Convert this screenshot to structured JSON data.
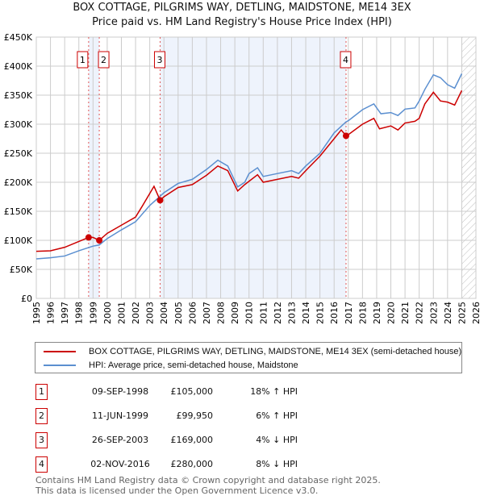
{
  "chart_data": {
    "type": "line",
    "title": "BOX COTTAGE, PILGRIMS WAY, DETLING, MAIDSTONE, ME14 3EX",
    "subtitle": "Price paid vs. HM Land Registry's House Price Index (HPI)",
    "xlim": [
      1995,
      2026
    ],
    "ylim": [
      0,
      450000
    ],
    "x_ticks": [
      "1995",
      "1996",
      "1997",
      "1998",
      "1999",
      "2000",
      "2001",
      "2002",
      "2003",
      "2004",
      "2005",
      "2006",
      "2007",
      "2008",
      "2009",
      "2010",
      "2011",
      "2012",
      "2013",
      "2014",
      "2015",
      "2016",
      "2017",
      "2018",
      "2019",
      "2020",
      "2021",
      "2022",
      "2023",
      "2024",
      "2025",
      "2026"
    ],
    "y_ticks": [
      {
        "v": 0,
        "label": "£0"
      },
      {
        "v": 50000,
        "label": "£50K"
      },
      {
        "v": 100000,
        "label": "£100K"
      },
      {
        "v": 150000,
        "label": "£150K"
      },
      {
        "v": 200000,
        "label": "£200K"
      },
      {
        "v": 250000,
        "label": "£250K"
      },
      {
        "v": 300000,
        "label": "£300K"
      },
      {
        "v": 350000,
        "label": "£350K"
      },
      {
        "v": 400000,
        "label": "£400K"
      },
      {
        "v": 450000,
        "label": "£450K"
      }
    ],
    "grid": true,
    "shaded_ranges": [
      [
        1998.69,
        1999.44
      ],
      [
        2003.73,
        2016.84
      ]
    ],
    "forecast_hatch_from": 2025.0,
    "series": [
      {
        "name": "BOX COTTAGE, PILGRIMS WAY, DETLING, MAIDSTONE, ME14 3EX (semi-detached house)",
        "color": "#cc0000",
        "x": [
          1995,
          1996,
          1997,
          1998,
          1998.69,
          1999,
          1999.44,
          2000,
          2001,
          2002,
          2002.5,
          2003.3,
          2003.73,
          2004,
          2005,
          2006,
          2007,
          2007.8,
          2008.5,
          2009.2,
          2009.7,
          2010.6,
          2011,
          2012,
          2013,
          2013.5,
          2014,
          2015,
          2016,
          2016.5,
          2016.84,
          2017,
          2018,
          2018.8,
          2019.2,
          2020,
          2020.5,
          2021,
          2021.7,
          2022,
          2022.4,
          2023,
          2023.5,
          2024,
          2024.5,
          2025
        ],
        "y": [
          81000,
          82000,
          88000,
          98000,
          105000,
          105000,
          99950,
          112000,
          126000,
          140000,
          160000,
          193000,
          169000,
          175000,
          191000,
          196000,
          212000,
          228000,
          220000,
          185000,
          196000,
          213000,
          200000,
          205000,
          210000,
          207000,
          220000,
          245000,
          275000,
          290000,
          280000,
          282000,
          300000,
          310000,
          292000,
          297000,
          290000,
          302000,
          305000,
          310000,
          335000,
          355000,
          340000,
          338000,
          333000,
          358000
        ]
      },
      {
        "name": "HPI: Average price, semi-detached house, Maidstone",
        "color": "#5b8fd0",
        "x": [
          1995,
          1996,
          1997,
          1998,
          1999,
          1999.44,
          2000,
          2001,
          2002,
          2003,
          2003.73,
          2004,
          2005,
          2006,
          2007,
          2007.8,
          2008.5,
          2009.2,
          2009.7,
          2010,
          2010.6,
          2011,
          2012,
          2013,
          2013.5,
          2014,
          2015,
          2016,
          2016.84,
          2017,
          2018,
          2018.8,
          2019.3,
          2020,
          2020.5,
          2021,
          2021.7,
          2022,
          2022.4,
          2023,
          2023.5,
          2024,
          2024.5,
          2025
        ],
        "y": [
          68000,
          70000,
          73000,
          82000,
          90000,
          92000,
          103000,
          118000,
          132000,
          160000,
          176000,
          182000,
          198000,
          205000,
          222000,
          238000,
          228000,
          192000,
          200000,
          215000,
          225000,
          210000,
          215000,
          220000,
          215000,
          228000,
          250000,
          285000,
          304000,
          306000,
          325000,
          335000,
          318000,
          320000,
          315000,
          326000,
          328000,
          340000,
          360000,
          385000,
          380000,
          368000,
          362000,
          387000
        ]
      }
    ],
    "sales": [
      {
        "n": "1",
        "x": 1998.69,
        "y": 105000,
        "date": "09-SEP-1998",
        "price": "£105,000",
        "hpi": "18% ↑ HPI"
      },
      {
        "n": "2",
        "x": 1999.44,
        "y": 99950,
        "date": "11-JUN-1999",
        "price": "£99,950",
        "hpi": "6% ↑ HPI"
      },
      {
        "n": "3",
        "x": 2003.73,
        "y": 169000,
        "date": "26-SEP-2003",
        "price": "£169,000",
        "hpi": "4% ↓ HPI"
      },
      {
        "n": "4",
        "x": 2016.84,
        "y": 280000,
        "date": "02-NOV-2016",
        "price": "£280,000",
        "hpi": "8% ↓ HPI"
      }
    ]
  },
  "footer": {
    "line1": "Contains HM Land Registry data © Crown copyright and database right 2025.",
    "line2": "This data is licensed under the Open Government Licence v3.0."
  }
}
